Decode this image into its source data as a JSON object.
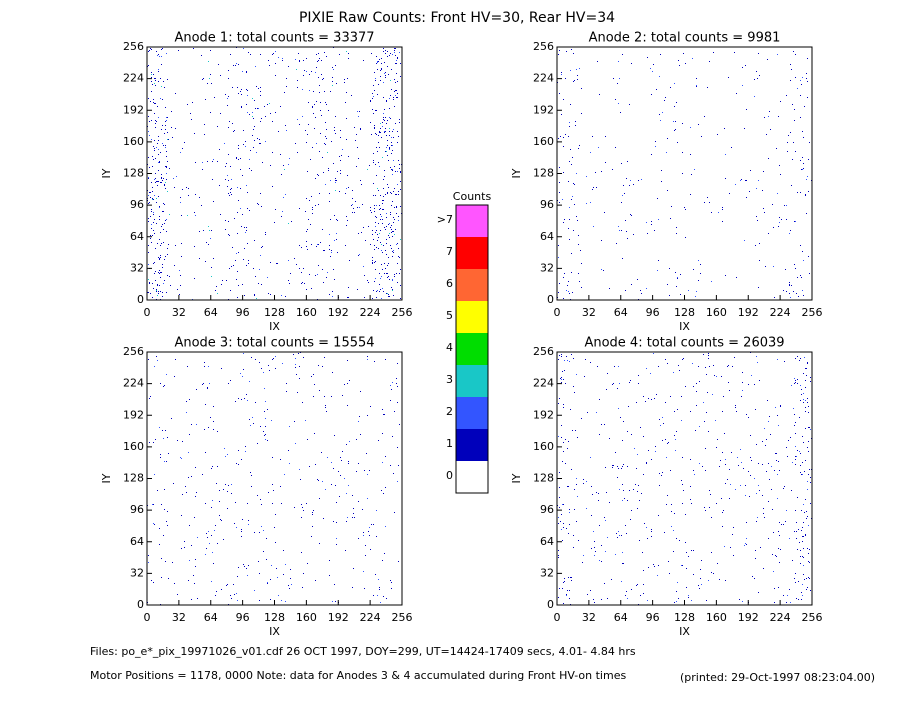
{
  "title": "PIXIE Raw Counts:  Front HV=30, Rear HV=34",
  "chart_data": [
    {
      "type": "heatmap",
      "title": "Anode 1: total counts = 33377",
      "xlabel": "IX",
      "ylabel": "IY",
      "xlim": [
        0,
        256
      ],
      "ylim": [
        0,
        256
      ],
      "xticks": [
        0,
        32,
        64,
        96,
        128,
        160,
        192,
        224,
        256
      ],
      "yticks": [
        0,
        32,
        64,
        96,
        128,
        160,
        192,
        224,
        256
      ]
    },
    {
      "type": "heatmap",
      "title": "Anode 2: total counts = 9981",
      "xlabel": "IX",
      "ylabel": "IY",
      "xlim": [
        0,
        256
      ],
      "ylim": [
        0,
        256
      ],
      "xticks": [
        0,
        32,
        64,
        96,
        128,
        160,
        192,
        224,
        256
      ],
      "yticks": [
        0,
        32,
        64,
        96,
        128,
        160,
        192,
        224,
        256
      ]
    },
    {
      "type": "heatmap",
      "title": "Anode 3: total counts = 15554",
      "xlabel": "IX",
      "ylabel": "IY",
      "xlim": [
        0,
        256
      ],
      "ylim": [
        0,
        256
      ],
      "xticks": [
        0,
        32,
        64,
        96,
        128,
        160,
        192,
        224,
        256
      ],
      "yticks": [
        0,
        32,
        64,
        96,
        128,
        160,
        192,
        224,
        256
      ]
    },
    {
      "type": "heatmap",
      "title": "Anode 4: total counts = 26039",
      "xlabel": "IX",
      "ylabel": "IY",
      "xlim": [
        0,
        256
      ],
      "ylim": [
        0,
        256
      ],
      "xticks": [
        0,
        32,
        64,
        96,
        128,
        160,
        192,
        224,
        256
      ],
      "yticks": [
        0,
        32,
        64,
        96,
        128,
        160,
        192,
        224,
        256
      ]
    }
  ],
  "colorbar": {
    "title": "Counts",
    "categories": [
      "0",
      "1",
      "2",
      "3",
      "4",
      "5",
      "6",
      "7",
      ">7"
    ],
    "colors": [
      "#ffffff",
      "#0000bb",
      "#3355ff",
      "#19c7c7",
      "#00dd00",
      "#ffff00",
      "#ff6633",
      "#ff0000",
      "#ff55ff"
    ]
  },
  "footer": {
    "files": "Files: po_e*_pix_19971026_v01.cdf    26 OCT 1997, DOY=299, UT=14424-17409 secs,  4.01- 4.84 hrs",
    "motor": "Motor Positions = 1178, 0000    Note: data for Anodes 3 & 4 accumulated during Front HV-on times",
    "printed": "(printed: 29-Oct-1997 08:23:04.00)"
  }
}
